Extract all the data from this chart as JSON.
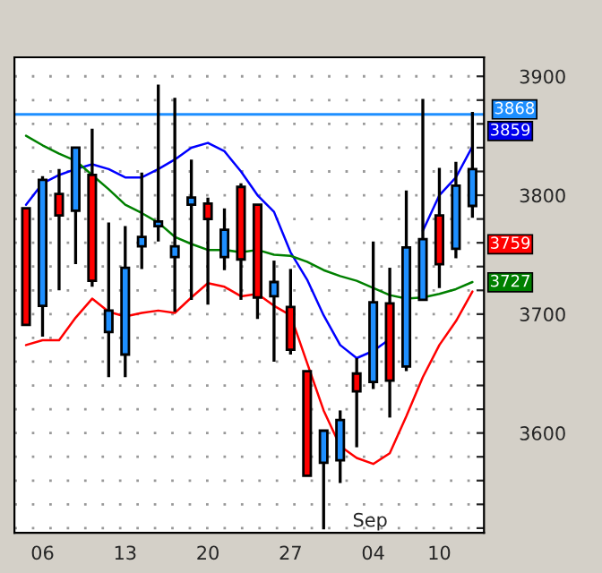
{
  "chart_data": {
    "type": "candlestick",
    "categories": [
      null,
      "06",
      null,
      null,
      null,
      null,
      "13",
      null,
      null,
      null,
      null,
      "20",
      null,
      null,
      null,
      null,
      "27",
      null,
      null,
      null,
      null,
      "04",
      null,
      null,
      null,
      "10",
      null,
      null
    ],
    "ohlc": [
      [
        3789,
        3789,
        3691,
        3691
      ],
      [
        3707,
        3816,
        3681,
        3813
      ],
      [
        3801,
        3822,
        3720,
        3783
      ],
      [
        3787,
        3840,
        3742,
        3840
      ],
      [
        3817,
        3856,
        3723,
        3728
      ],
      [
        3685,
        3777,
        3647,
        3703
      ],
      [
        3666,
        3774,
        3647,
        3739
      ],
      [
        3757,
        3819,
        3738,
        3765
      ],
      [
        3774,
        3893,
        3761,
        3778
      ],
      [
        3748,
        3882,
        3702,
        3757
      ],
      [
        3792,
        3830,
        3712,
        3798
      ],
      [
        3793,
        3798,
        3708,
        3780
      ],
      [
        3748,
        3789,
        3737,
        3771
      ],
      [
        3807,
        3810,
        3712,
        3746
      ],
      [
        3792,
        3792,
        3696,
        3714
      ],
      [
        3715,
        3745,
        3660,
        3727
      ],
      [
        3706,
        3738,
        3666,
        3670
      ],
      [
        3652,
        3652,
        3564,
        3564
      ],
      [
        3575,
        3602,
        3519,
        3602
      ],
      [
        3577,
        3619,
        3558,
        3611
      ],
      [
        3650,
        3663,
        3588,
        3635
      ],
      [
        3643,
        3761,
        3637,
        3710
      ],
      [
        3709,
        3739,
        3613,
        3644
      ],
      [
        3656,
        3804,
        3652,
        3756
      ],
      [
        3712,
        3881,
        3712,
        3763
      ],
      [
        3783,
        3823,
        3722,
        3742
      ],
      [
        3755,
        3828,
        3747,
        3808
      ],
      [
        3791,
        3870,
        3781,
        3822
      ]
    ],
    "colors": [
      "#ff0000",
      "#1e8fff",
      "#ff0000",
      "#1e8fff",
      "#ff0000",
      "#1e8fff",
      "#1e8fff",
      "#1e8fff",
      "#1e8fff",
      "#1e8fff",
      "#1e8fff",
      "#ff0000",
      "#1e8fff",
      "#ff0000",
      "#ff0000",
      "#1e8fff",
      "#ff0000",
      "#ff0000",
      "#1e8fff",
      "#1e8fff",
      "#ff0000",
      "#1e8fff",
      "#ff0000",
      "#1e8fff",
      "#1e8fff",
      "#ff0000",
      "#1e8fff",
      "#1e8fff"
    ],
    "series": [
      {
        "type": "line",
        "color": "#0000ff",
        "values": [
          3792,
          3810,
          3817,
          3822,
          3826,
          3822,
          3815,
          3815,
          3822,
          3830,
          3840,
          3844,
          3837,
          3820,
          3800,
          3786,
          3752,
          3729,
          3699,
          3674,
          3663,
          3669,
          3679,
          null,
          3770,
          3800,
          3815,
          3841
        ]
      },
      {
        "type": "line",
        "color": "#008000",
        "values": [
          3850,
          3842,
          3835,
          3829,
          3817,
          3805,
          3792,
          3785,
          3777,
          3765,
          3759,
          3754,
          3754,
          3752,
          3754,
          3750,
          3749,
          3744,
          3737,
          3732,
          3728,
          3722,
          3716,
          3713,
          3714,
          3717,
          3721,
          3727
        ]
      },
      {
        "type": "line",
        "color": "#ff0000",
        "values": [
          3674,
          3678,
          3678,
          3697,
          3713,
          3702,
          3698,
          3701,
          3703,
          3701,
          3714,
          3726,
          3723,
          3715,
          3717,
          3707,
          3699,
          3659,
          3619,
          3589,
          3579,
          3574,
          3583,
          3614,
          3647,
          3674,
          3694,
          3719
        ]
      }
    ],
    "ylim": [
      3516,
      3916
    ],
    "yticks": [
      {
        "value": 3520,
        "label": null
      },
      {
        "value": 3540,
        "label": null
      },
      {
        "value": 3560,
        "label": null
      },
      {
        "value": 3580,
        "label": null
      },
      3600,
      {
        "value": 3620,
        "label": null
      },
      {
        "value": 3640,
        "label": null
      },
      {
        "value": 3660,
        "label": null
      },
      {
        "value": 3680,
        "label": null
      },
      3700,
      {
        "value": 3720,
        "label": null
      },
      {
        "value": 3740,
        "label": null
      },
      {
        "value": 3760,
        "label": null
      },
      {
        "value": 3780,
        "label": null
      },
      3800,
      {
        "value": 3820,
        "label": null
      },
      {
        "value": 3840,
        "label": null
      },
      {
        "value": 3860,
        "label": null
      },
      {
        "value": 3880,
        "label": null
      },
      3900
    ],
    "grid": "y",
    "ref_lines": [
      {
        "axis": "y",
        "value": 3868,
        "color": "#1e8fff",
        "label": "3868"
      }
    ],
    "annotations": [
      "Sep",
      "3859",
      "3759",
      "3727"
    ]
  }
}
